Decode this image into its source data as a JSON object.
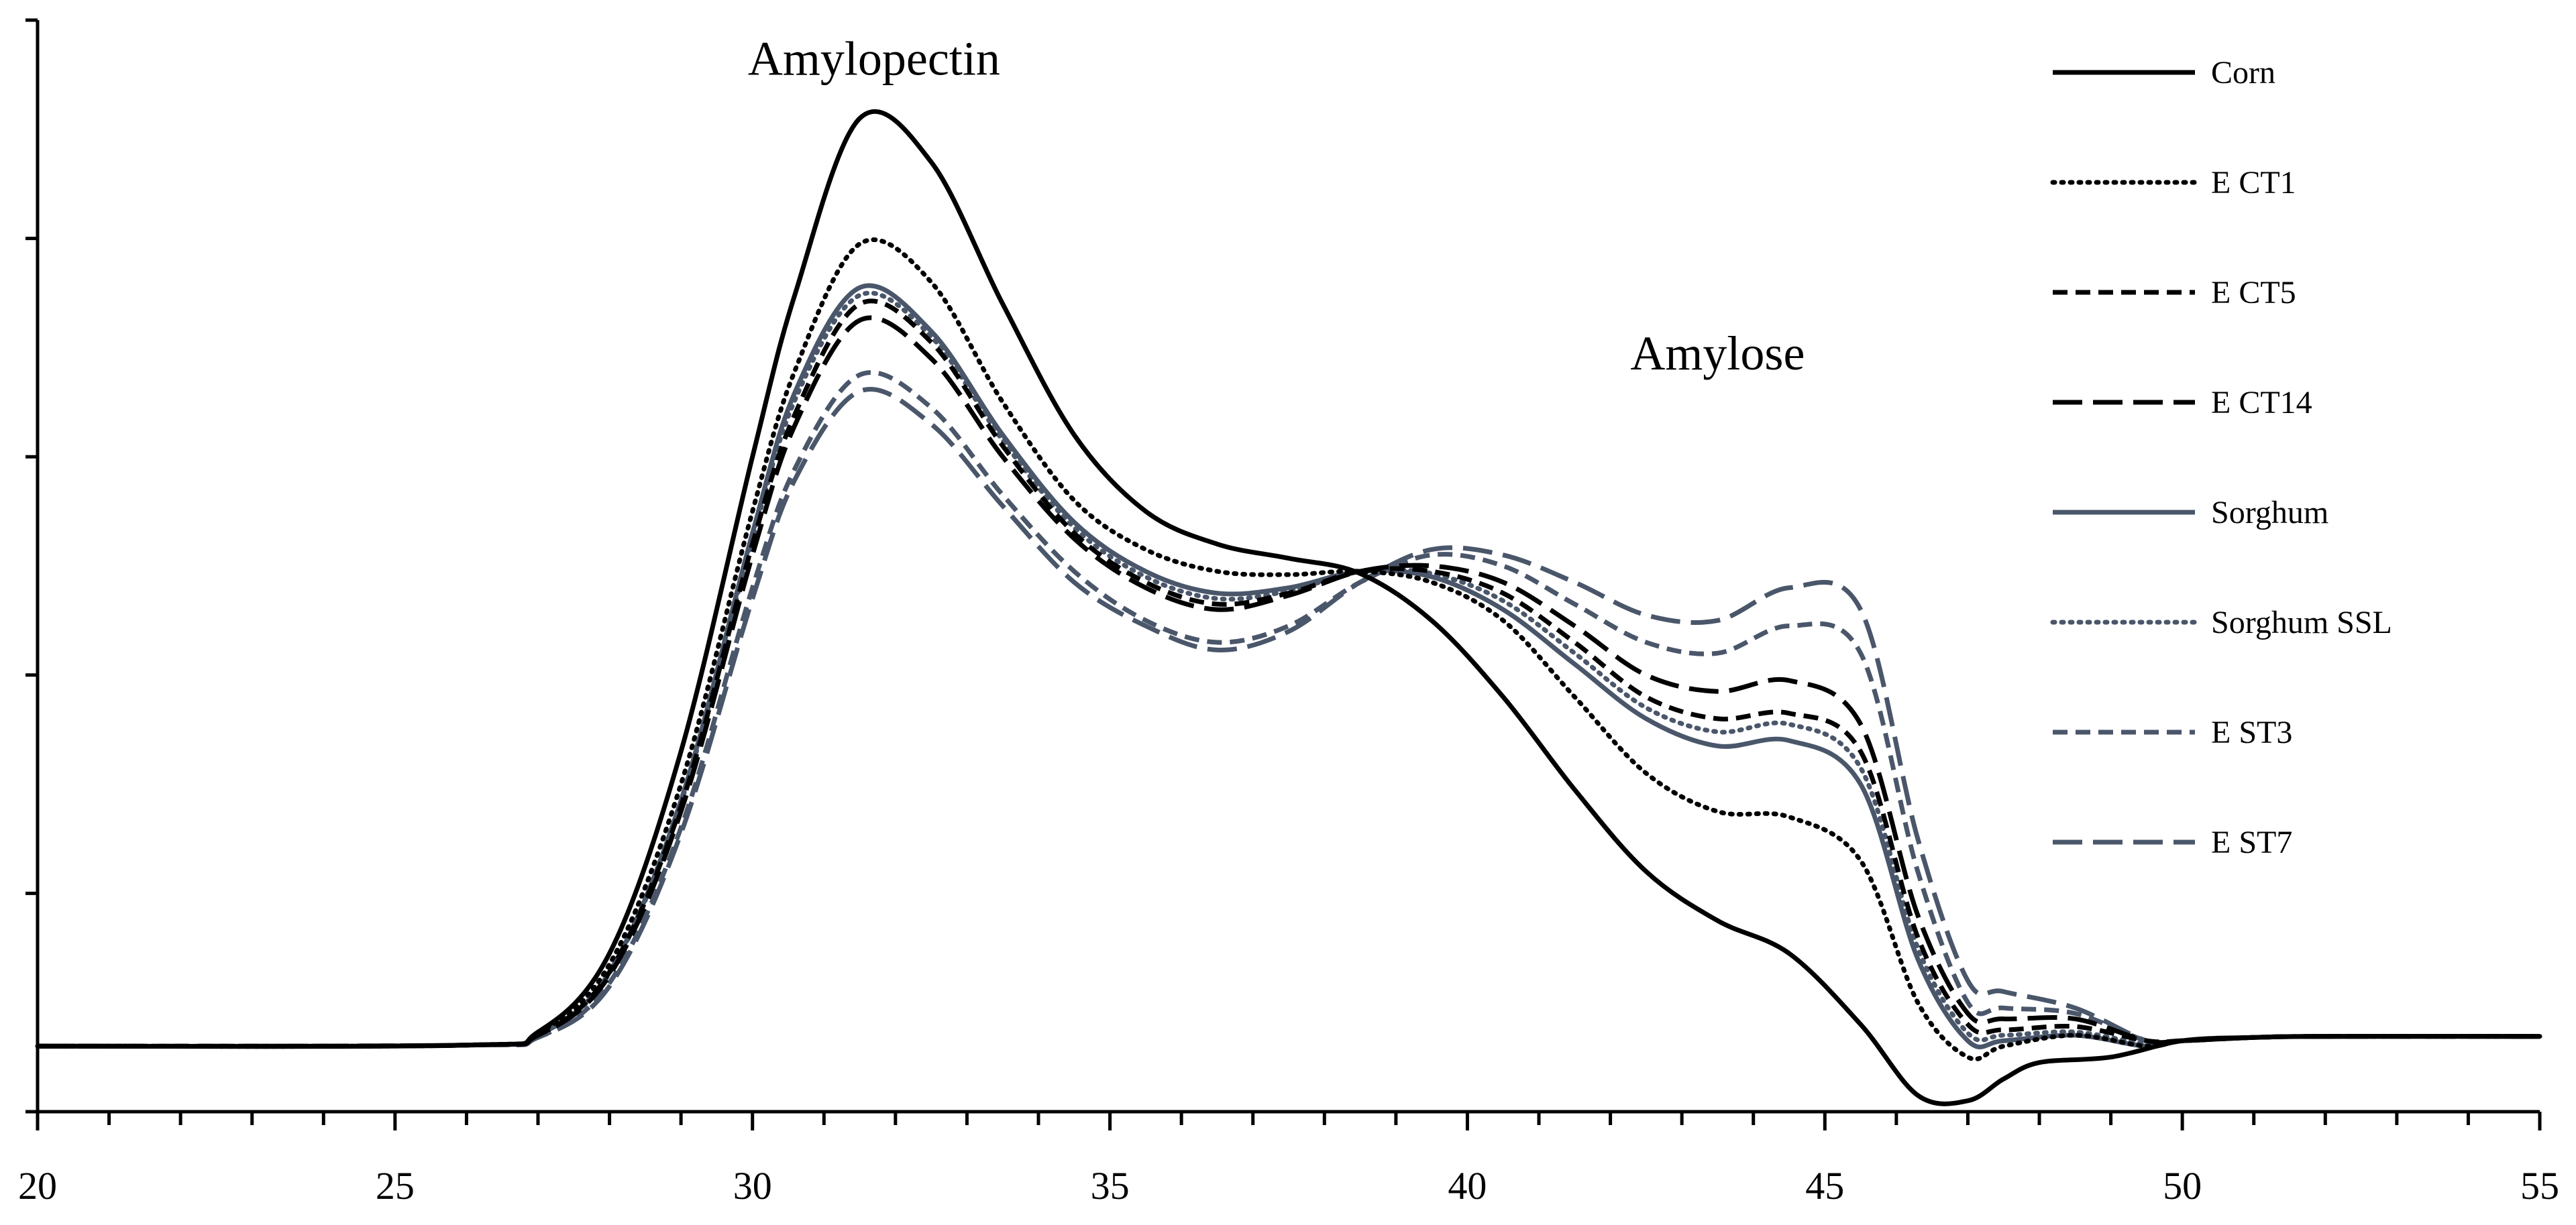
{
  "chart_data": {
    "type": "line",
    "title": "",
    "xlabel": "",
    "ylabel": "",
    "xlim": [
      20,
      55
    ],
    "ylim": [
      0,
      100
    ],
    "x_ticks": [
      20,
      25,
      30,
      35,
      40,
      45,
      50,
      55
    ],
    "x_tick_labels": [
      "20",
      "25",
      "30",
      "35",
      "40",
      "45",
      "50",
      "55"
    ],
    "y_tick_count": 5,
    "grid": false,
    "legend_position": "top-right",
    "annotations": [
      {
        "text": "Amylopectin",
        "x": 31.7,
        "y": 95
      },
      {
        "text": "Amylose",
        "x": 43.5,
        "y": 68
      }
    ],
    "series": [
      {
        "name": "Corn",
        "color": "#000000",
        "dash": "solid",
        "points": [
          [
            20,
            6
          ],
          [
            26,
            6.1
          ],
          [
            27,
            7.3
          ],
          [
            28,
            14.5
          ],
          [
            29,
            33
          ],
          [
            30,
            60
          ],
          [
            30.6,
            75
          ],
          [
            31.5,
            91
          ],
          [
            32.5,
            87
          ],
          [
            33.5,
            74
          ],
          [
            34.5,
            62
          ],
          [
            35.5,
            55
          ],
          [
            36.5,
            52
          ],
          [
            37.5,
            50.7
          ],
          [
            38.5,
            49.3
          ],
          [
            39.5,
            45
          ],
          [
            40.5,
            38
          ],
          [
            41.5,
            29.5
          ],
          [
            42.5,
            22
          ],
          [
            43.5,
            17.5
          ],
          [
            44.5,
            14.5
          ],
          [
            45.5,
            8
          ],
          [
            46.3,
            1.5
          ],
          [
            47,
            1
          ],
          [
            47.5,
            3
          ],
          [
            48,
            4.5
          ],
          [
            49,
            5
          ],
          [
            50,
            6.5
          ],
          [
            51,
            6.8
          ],
          [
            52,
            6.9
          ],
          [
            55,
            6.9
          ]
        ]
      },
      {
        "name": "E CT1",
        "color": "#000000",
        "dash": "dotted",
        "points": [
          [
            20,
            6
          ],
          [
            26,
            6.1
          ],
          [
            27,
            7.2
          ],
          [
            28,
            13.5
          ],
          [
            29,
            30
          ],
          [
            30,
            55
          ],
          [
            30.6,
            68
          ],
          [
            31.5,
            79.5
          ],
          [
            32.5,
            76
          ],
          [
            33.5,
            65
          ],
          [
            34.5,
            56
          ],
          [
            35.5,
            51.5
          ],
          [
            36.5,
            49.5
          ],
          [
            37.5,
            49.2
          ],
          [
            38.5,
            49.5
          ],
          [
            39.5,
            48.5
          ],
          [
            40.5,
            45
          ],
          [
            41.5,
            38
          ],
          [
            42.5,
            31
          ],
          [
            43.5,
            27.5
          ],
          [
            44.5,
            27
          ],
          [
            45.5,
            23
          ],
          [
            46.3,
            10
          ],
          [
            47,
            5
          ],
          [
            47.5,
            6
          ],
          [
            48.5,
            7
          ],
          [
            49.5,
            6
          ],
          [
            50,
            6.5
          ],
          [
            51,
            6.8
          ],
          [
            52,
            6.9
          ],
          [
            55,
            6.9
          ]
        ]
      },
      {
        "name": "E CT5",
        "color": "#000000",
        "dash": "dashed",
        "points": [
          [
            20,
            6
          ],
          [
            26,
            6.1
          ],
          [
            27,
            7.0
          ],
          [
            28,
            12.8
          ],
          [
            29,
            28
          ],
          [
            30,
            52
          ],
          [
            30.6,
            64
          ],
          [
            31.5,
            74
          ],
          [
            32.5,
            70.5
          ],
          [
            33.5,
            61
          ],
          [
            34.5,
            53
          ],
          [
            35.5,
            48.5
          ],
          [
            36.5,
            46.5
          ],
          [
            37.5,
            47.5
          ],
          [
            38.5,
            49.5
          ],
          [
            39.5,
            49.5
          ],
          [
            40.5,
            47.5
          ],
          [
            41.5,
            43
          ],
          [
            42.5,
            38
          ],
          [
            43.5,
            36
          ],
          [
            44.5,
            36.5
          ],
          [
            45.5,
            33
          ],
          [
            46.3,
            16
          ],
          [
            47,
            8
          ],
          [
            47.5,
            7.5
          ],
          [
            48.5,
            7.8
          ],
          [
            49.5,
            6.5
          ],
          [
            50,
            6.5
          ],
          [
            51,
            6.8
          ],
          [
            52,
            6.9
          ],
          [
            55,
            6.9
          ]
        ]
      },
      {
        "name": "E CT14",
        "color": "#000000",
        "dash": "longdash",
        "points": [
          [
            20,
            6
          ],
          [
            26,
            6.1
          ],
          [
            27,
            7.0
          ],
          [
            28,
            12.5
          ],
          [
            29,
            27.5
          ],
          [
            30,
            51
          ],
          [
            30.6,
            63
          ],
          [
            31.5,
            72.5
          ],
          [
            32.5,
            69
          ],
          [
            33.5,
            60
          ],
          [
            34.5,
            52.5
          ],
          [
            35.5,
            48
          ],
          [
            36.5,
            46
          ],
          [
            37.5,
            47.3
          ],
          [
            38.5,
            49.5
          ],
          [
            39.5,
            50
          ],
          [
            40.5,
            48.5
          ],
          [
            41.5,
            44.5
          ],
          [
            42.5,
            40
          ],
          [
            43.5,
            38.5
          ],
          [
            44.5,
            39.5
          ],
          [
            45.5,
            35.5
          ],
          [
            46.3,
            18
          ],
          [
            47,
            9
          ],
          [
            47.5,
            8.5
          ],
          [
            48.5,
            8.5
          ],
          [
            49.5,
            6.5
          ],
          [
            50,
            6.5
          ],
          [
            51,
            6.8
          ],
          [
            52,
            6.9
          ],
          [
            55,
            6.9
          ]
        ]
      },
      {
        "name": "Sorghum",
        "color": "#4a566a",
        "dash": "solid",
        "points": [
          [
            20,
            6
          ],
          [
            26,
            6.1
          ],
          [
            27,
            7.0
          ],
          [
            28,
            12.8
          ],
          [
            29,
            28.5
          ],
          [
            30,
            53
          ],
          [
            30.6,
            66
          ],
          [
            31.5,
            75.5
          ],
          [
            32.5,
            71.5
          ],
          [
            33.5,
            62
          ],
          [
            34.5,
            54
          ],
          [
            35.5,
            49.5
          ],
          [
            36.5,
            47.5
          ],
          [
            37.5,
            48
          ],
          [
            38.5,
            49.5
          ],
          [
            39.5,
            49
          ],
          [
            40.5,
            46
          ],
          [
            41.5,
            41
          ],
          [
            42.5,
            36
          ],
          [
            43.5,
            33.5
          ],
          [
            44.5,
            34
          ],
          [
            45.5,
            30
          ],
          [
            46.3,
            14
          ],
          [
            47,
            6.5
          ],
          [
            47.5,
            6.5
          ],
          [
            48.5,
            7
          ],
          [
            49.5,
            6
          ],
          [
            50,
            6.5
          ],
          [
            51,
            6.8
          ],
          [
            52,
            6.9
          ],
          [
            55,
            6.9
          ]
        ]
      },
      {
        "name": "Sorghum SSL",
        "color": "#4a566a",
        "dash": "dotted",
        "points": [
          [
            20,
            6
          ],
          [
            26,
            6.1
          ],
          [
            27,
            7.0
          ],
          [
            28,
            12.7
          ],
          [
            29,
            28.3
          ],
          [
            30,
            52.5
          ],
          [
            30.6,
            65.3
          ],
          [
            31.5,
            74.8
          ],
          [
            32.5,
            71
          ],
          [
            33.5,
            61.5
          ],
          [
            34.5,
            53.5
          ],
          [
            35.5,
            49
          ],
          [
            36.5,
            47
          ],
          [
            37.5,
            47.7
          ],
          [
            38.5,
            49.5
          ],
          [
            39.5,
            49.3
          ],
          [
            40.5,
            46.8
          ],
          [
            41.5,
            42
          ],
          [
            42.5,
            37
          ],
          [
            43.5,
            34.8
          ],
          [
            44.5,
            35.5
          ],
          [
            45.5,
            31.5
          ],
          [
            46.3,
            15
          ],
          [
            47,
            7.2
          ],
          [
            47.5,
            7
          ],
          [
            48.5,
            7.3
          ],
          [
            49.5,
            6.2
          ],
          [
            50,
            6.5
          ],
          [
            51,
            6.8
          ],
          [
            52,
            6.9
          ],
          [
            55,
            6.9
          ]
        ]
      },
      {
        "name": "E ST3",
        "color": "#4a566a",
        "dash": "dashed",
        "points": [
          [
            20,
            6
          ],
          [
            26,
            6.1
          ],
          [
            27,
            6.8
          ],
          [
            28,
            11.8
          ],
          [
            29,
            26
          ],
          [
            30,
            48
          ],
          [
            30.6,
            59
          ],
          [
            31.5,
            67.5
          ],
          [
            32.5,
            64.5
          ],
          [
            33.5,
            56.5
          ],
          [
            34.5,
            49.5
          ],
          [
            35.5,
            45
          ],
          [
            36.5,
            43
          ],
          [
            37.5,
            44.5
          ],
          [
            38.5,
            48.5
          ],
          [
            39.5,
            51
          ],
          [
            40.5,
            50
          ],
          [
            41.5,
            46.5
          ],
          [
            42.5,
            43
          ],
          [
            43.5,
            42
          ],
          [
            44.5,
            44.5
          ],
          [
            45.5,
            42
          ],
          [
            46.3,
            22
          ],
          [
            47,
            10
          ],
          [
            47.5,
            9.5
          ],
          [
            48.5,
            9
          ],
          [
            49.5,
            6.5
          ],
          [
            50,
            6.5
          ],
          [
            51,
            6.8
          ],
          [
            52,
            6.9
          ],
          [
            55,
            6.9
          ]
        ]
      },
      {
        "name": "E ST7",
        "color": "#4a566a",
        "dash": "longdash",
        "points": [
          [
            20,
            6
          ],
          [
            26,
            6.1
          ],
          [
            27,
            6.8
          ],
          [
            28,
            11.5
          ],
          [
            29,
            25.5
          ],
          [
            30,
            47
          ],
          [
            30.6,
            58
          ],
          [
            31.5,
            66
          ],
          [
            32.5,
            63
          ],
          [
            33.5,
            55.5
          ],
          [
            34.5,
            48.5
          ],
          [
            35.5,
            44.5
          ],
          [
            36.5,
            42.3
          ],
          [
            37.5,
            44
          ],
          [
            38.5,
            48.5
          ],
          [
            39.5,
            51.5
          ],
          [
            40.5,
            51
          ],
          [
            41.5,
            48.5
          ],
          [
            42.5,
            45.5
          ],
          [
            43.5,
            45
          ],
          [
            44.5,
            48
          ],
          [
            45.5,
            46
          ],
          [
            46.3,
            25
          ],
          [
            47,
            12
          ],
          [
            47.5,
            11
          ],
          [
            48.5,
            9.5
          ],
          [
            49.5,
            6.5
          ],
          [
            50,
            6.5
          ],
          [
            51,
            6.8
          ],
          [
            52,
            6.9
          ],
          [
            55,
            6.9
          ]
        ]
      }
    ]
  }
}
